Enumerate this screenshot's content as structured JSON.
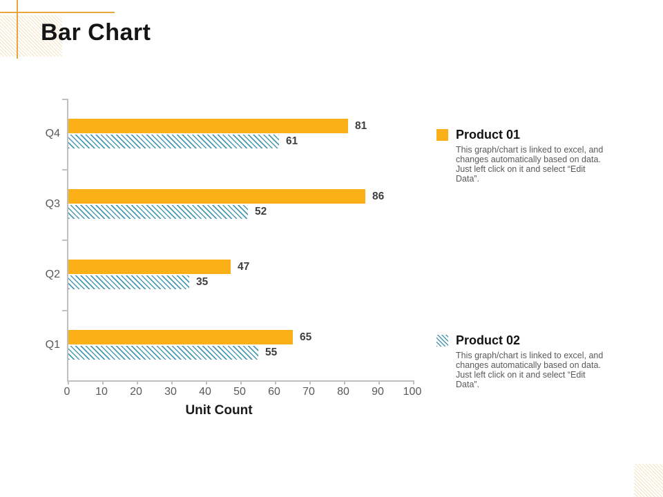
{
  "slide_title": "Bar Chart",
  "chart_data": {
    "type": "bar",
    "orientation": "horizontal",
    "title": "",
    "xlabel": "Unit Count",
    "categories": [
      "Q4",
      "Q3",
      "Q2",
      "Q1"
    ],
    "series": [
      {
        "name": "Product 01",
        "style": "solid",
        "color": "#FBB017",
        "values": [
          81,
          86,
          47,
          65
        ]
      },
      {
        "name": "Product 02",
        "style": "diagonal-hatch",
        "color": "#4799B5",
        "values": [
          61,
          52,
          35,
          55
        ]
      }
    ],
    "xlim": [
      0,
      100
    ],
    "xticks": [
      0,
      10,
      20,
      30,
      40,
      50,
      60,
      70,
      80,
      90,
      100
    ],
    "grid": false,
    "value_labels": true,
    "legend_position": "right"
  },
  "legend": {
    "items": [
      {
        "label": "Product 01",
        "swatch": "solid-orange-square",
        "description": "This graph/chart is linked to excel, and\nchanges automatically based on data.\nJust left click on it and select “Edit Data”."
      },
      {
        "label": "Product 02",
        "swatch": "teal-hatched-square",
        "description": "This graph/chart is linked to excel, and\nchanges automatically based on data.\nJust left click on it and select “Edit Data”."
      }
    ]
  },
  "colors": {
    "bar_orange": "#FBB017",
    "hatch_teal": "#4799B5",
    "decor_gold": "#E8A63C",
    "axis_gray": "#BFBFBF",
    "label_gray": "#595959",
    "value_dark": "#3E3E3E",
    "title_black": "#151515"
  }
}
